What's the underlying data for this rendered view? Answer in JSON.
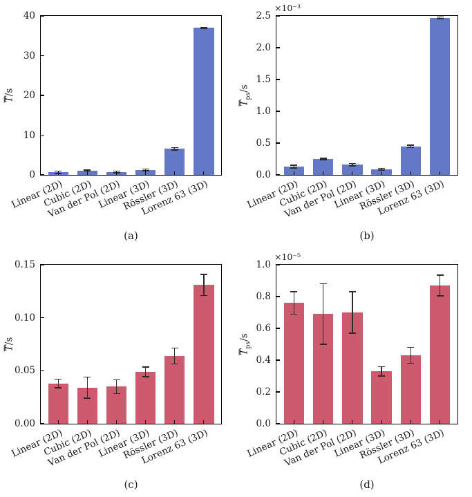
{
  "figure": {
    "background": "#ffffff",
    "axis_color": "#000000",
    "error_bar_color": "#2b2b2b",
    "text_color": "#1a1a1a"
  },
  "chart_data": [
    {
      "id": "a",
      "type": "bar",
      "caption": "(a)",
      "categories": [
        "Linear (2D)",
        "Cubic (2D)",
        "Van der Pol (2D)",
        "Linear (3D)",
        "Rössler (3D)",
        "Lorenz 63 (3D)"
      ],
      "values": [
        0.65,
        1.1,
        0.75,
        1.25,
        6.6,
        37.0
      ],
      "errors": [
        0.3,
        0.15,
        0.2,
        0.2,
        0.3,
        0.15
      ],
      "bar_color": "#6379C8",
      "ylabel": {
        "symbol": "T",
        "overline": true,
        "subscript": "",
        "unit": "/s"
      },
      "ylim": [
        0,
        40
      ],
      "yticks": [
        0,
        10,
        20,
        30,
        40
      ],
      "ytick_labels": [
        "0",
        "10",
        "20",
        "30",
        "40"
      ],
      "offset_text": "",
      "grid": false,
      "legend": null
    },
    {
      "id": "b",
      "type": "bar",
      "caption": "(b)",
      "categories": [
        "Linear (2D)",
        "Cubic (2D)",
        "Van der Pol (2D)",
        "Linear (3D)",
        "Rössler (3D)",
        "Lorenz 63 (3D)"
      ],
      "values": [
        0.13,
        0.25,
        0.16,
        0.09,
        0.45,
        2.47
      ],
      "errors": [
        0.02,
        0.012,
        0.02,
        0.012,
        0.02,
        0.015
      ],
      "bar_color": "#6379C8",
      "ylabel": {
        "symbol": "T",
        "overline": true,
        "subscript": "ps",
        "unit": "/s"
      },
      "ylim": [
        0,
        2.5
      ],
      "yticks": [
        0,
        0.5,
        1.0,
        1.5,
        2.0,
        2.5
      ],
      "ytick_labels": [
        "0.0",
        "0.5",
        "1.0",
        "1.5",
        "2.0",
        "2.5"
      ],
      "offset_text": "×10⁻³",
      "grid": false,
      "legend": null
    },
    {
      "id": "c",
      "type": "bar",
      "caption": "(c)",
      "categories": [
        "Linear (2D)",
        "Cubic (2D)",
        "Van der Pol (2D)",
        "Linear (3D)",
        "Rössler (3D)",
        "Lorenz 63 (3D)"
      ],
      "values": [
        0.038,
        0.034,
        0.035,
        0.049,
        0.064,
        0.131
      ],
      "errors": [
        0.004,
        0.01,
        0.0065,
        0.0045,
        0.0075,
        0.01
      ],
      "bar_color": "#CE5A6D",
      "ylabel": {
        "symbol": "T",
        "overline": true,
        "subscript": "",
        "unit": "/s"
      },
      "ylim": [
        0,
        0.15
      ],
      "yticks": [
        0,
        0.05,
        0.1,
        0.15
      ],
      "ytick_labels": [
        "0.00",
        "0.05",
        "0.10",
        "0.15"
      ],
      "offset_text": "",
      "grid": false,
      "legend": null
    },
    {
      "id": "d",
      "type": "bar",
      "caption": "(d)",
      "categories": [
        "Linear (2D)",
        "Cubic (2D)",
        "Van der Pol (2D)",
        "Linear (3D)",
        "Rössler (3D)",
        "Lorenz 63 (3D)"
      ],
      "values": [
        0.76,
        0.69,
        0.7,
        0.33,
        0.43,
        0.87
      ],
      "errors": [
        0.07,
        0.19,
        0.13,
        0.03,
        0.05,
        0.065
      ],
      "bar_color": "#CE5A6D",
      "ylabel": {
        "symbol": "T",
        "overline": true,
        "subscript": "ps",
        "unit": "/s"
      },
      "ylim": [
        0,
        1.0
      ],
      "yticks": [
        0,
        0.2,
        0.4,
        0.6,
        0.8,
        1.0
      ],
      "ytick_labels": [
        "0.0",
        "0.2",
        "0.4",
        "0.6",
        "0.8",
        "1.0"
      ],
      "offset_text": "×10⁻⁵",
      "grid": false,
      "legend": null
    }
  ]
}
